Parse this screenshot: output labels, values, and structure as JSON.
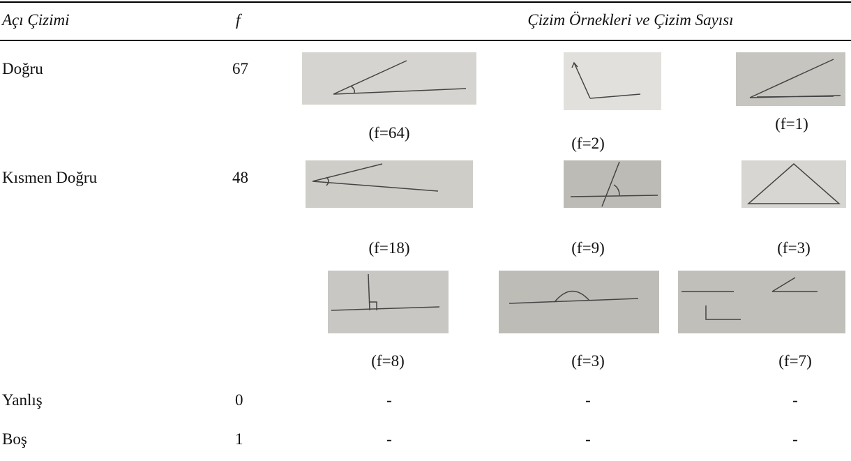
{
  "table": {
    "header": [
      "Açı Çizimi",
      "f",
      "Çizim Örnekleri ve Çizim Sayısı"
    ],
    "rows": [
      {
        "label": "Doğru",
        "f": "67",
        "examples": [
          [
            "(f=64)",
            "(f=2)",
            "(f=1)"
          ]
        ]
      },
      {
        "label": "Kısmen Doğru",
        "f": "48",
        "examples": [
          [
            "(f=18)",
            "(f=9)",
            "(f=3)"
          ],
          [
            "(f=8)",
            "(f=3)",
            "(f=7)"
          ]
        ]
      },
      {
        "label": "Yanlış",
        "f": "0",
        "examples": [
          [
            "-",
            "-",
            "-"
          ]
        ]
      },
      {
        "label": "Boş",
        "f": "1",
        "examples": [
          [
            "-",
            "-",
            "-"
          ]
        ]
      }
    ]
  }
}
